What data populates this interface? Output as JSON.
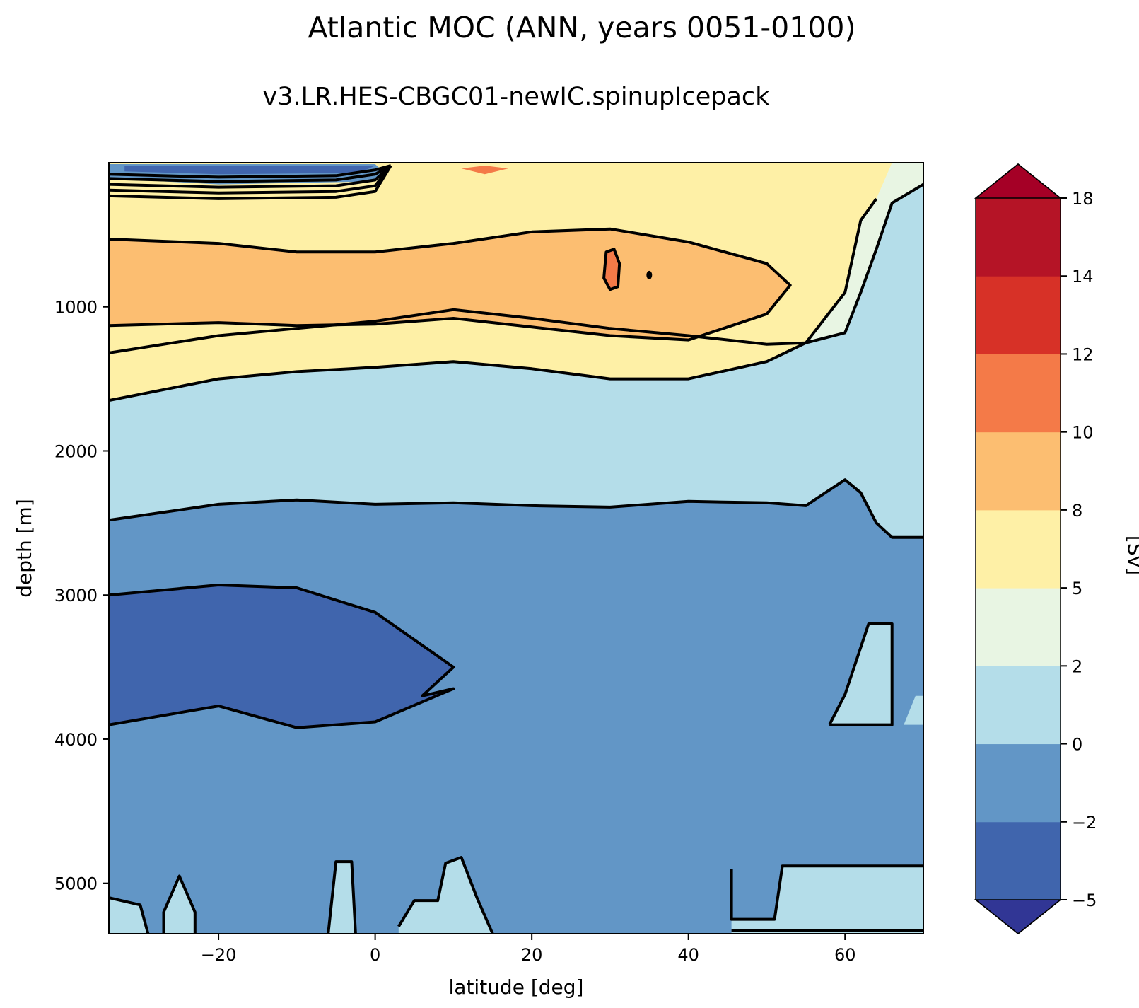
{
  "chart_data": {
    "type": "contour",
    "title": "Atlantic MOC (ANN, years 0051-0100)",
    "subtitle": "v3.LR.HES-CBGC01-newIC.spinupIcepack",
    "xlabel": "latitude [deg]",
    "ylabel": "depth [m]",
    "colorbar_label": "[Sv]",
    "xlim": [
      -34,
      70
    ],
    "ylim": [
      5350,
      0
    ],
    "x_ticks": [
      -20,
      0,
      20,
      40,
      60
    ],
    "x_tick_labels": [
      "−20",
      "0",
      "20",
      "40",
      "60"
    ],
    "y_ticks": [
      1000,
      2000,
      3000,
      4000,
      5000
    ],
    "y_tick_labels": [
      "1000",
      "2000",
      "3000",
      "4000",
      "5000"
    ],
    "levels": [
      -5,
      -2,
      0,
      2,
      5,
      8,
      10,
      12,
      14,
      18
    ],
    "level_labels": [
      "−5",
      "−2",
      "0",
      "2",
      "5",
      "8",
      "10",
      "12",
      "14",
      "18"
    ],
    "level_colors": [
      "#4065ad",
      "#6296c6",
      "#b4dde9",
      "#e8f5e3",
      "#fef0a6",
      "#fcbe71",
      "#f47a48",
      "#d73127",
      "#b51426"
    ],
    "extend_min_color": "#313695",
    "extend_max_color": "#a50026",
    "contour_line_color": "#000000",
    "bands_by_latitude": {
      "latitude": [
        -34,
        -20,
        -10,
        0,
        10,
        20,
        30,
        40,
        50,
        55,
        60,
        62,
        64,
        66,
        70
      ],
      "depth_0_2": [
        300,
        330,
        360,
        350,
        380,
        420,
        460,
        380,
        220,
        170,
        130,
        100,
        80,
        70,
        60
      ],
      "depth_2_5": [
        1320,
        1200,
        1150,
        1100,
        1020,
        1080,
        1150,
        1200,
        1260,
        1250,
        1180,
        900,
        600,
        280,
        150
      ],
      "depth_5_8": [
        1650,
        1500,
        1450,
        1420,
        1380,
        1430,
        1500,
        1500,
        1380,
        1250,
        900,
        400,
        250,
        0,
        0
      ],
      "depth_8_10": [
        530,
        560,
        620,
        620,
        560,
        480,
        460,
        550,
        700,
        0,
        0,
        0,
        0,
        0,
        0
      ],
      "depth_8_10_bottom": [
        1130,
        1110,
        1130,
        1120,
        1080,
        1140,
        1200,
        1230,
        1050,
        0,
        0,
        0,
        0,
        0,
        0
      ],
      "depth_zero_line": [
        2480,
        2370,
        2340,
        2370,
        2360,
        2380,
        2390,
        2350,
        2360,
        2380,
        2200,
        2290,
        2500,
        2600,
        2600
      ],
      "deep_cell_top": [
        3000,
        2930,
        2950,
        3120,
        3500,
        0,
        0,
        0,
        0,
        0,
        0,
        0,
        0,
        0,
        0
      ],
      "deep_cell_bottom": [
        3900,
        3770,
        3920,
        3880,
        3650,
        0,
        0,
        0,
        0,
        0,
        0,
        0,
        0,
        0,
        0
      ]
    },
    "deep_cell_min_sv": -3,
    "upper_cell_max_sv": 11
  }
}
